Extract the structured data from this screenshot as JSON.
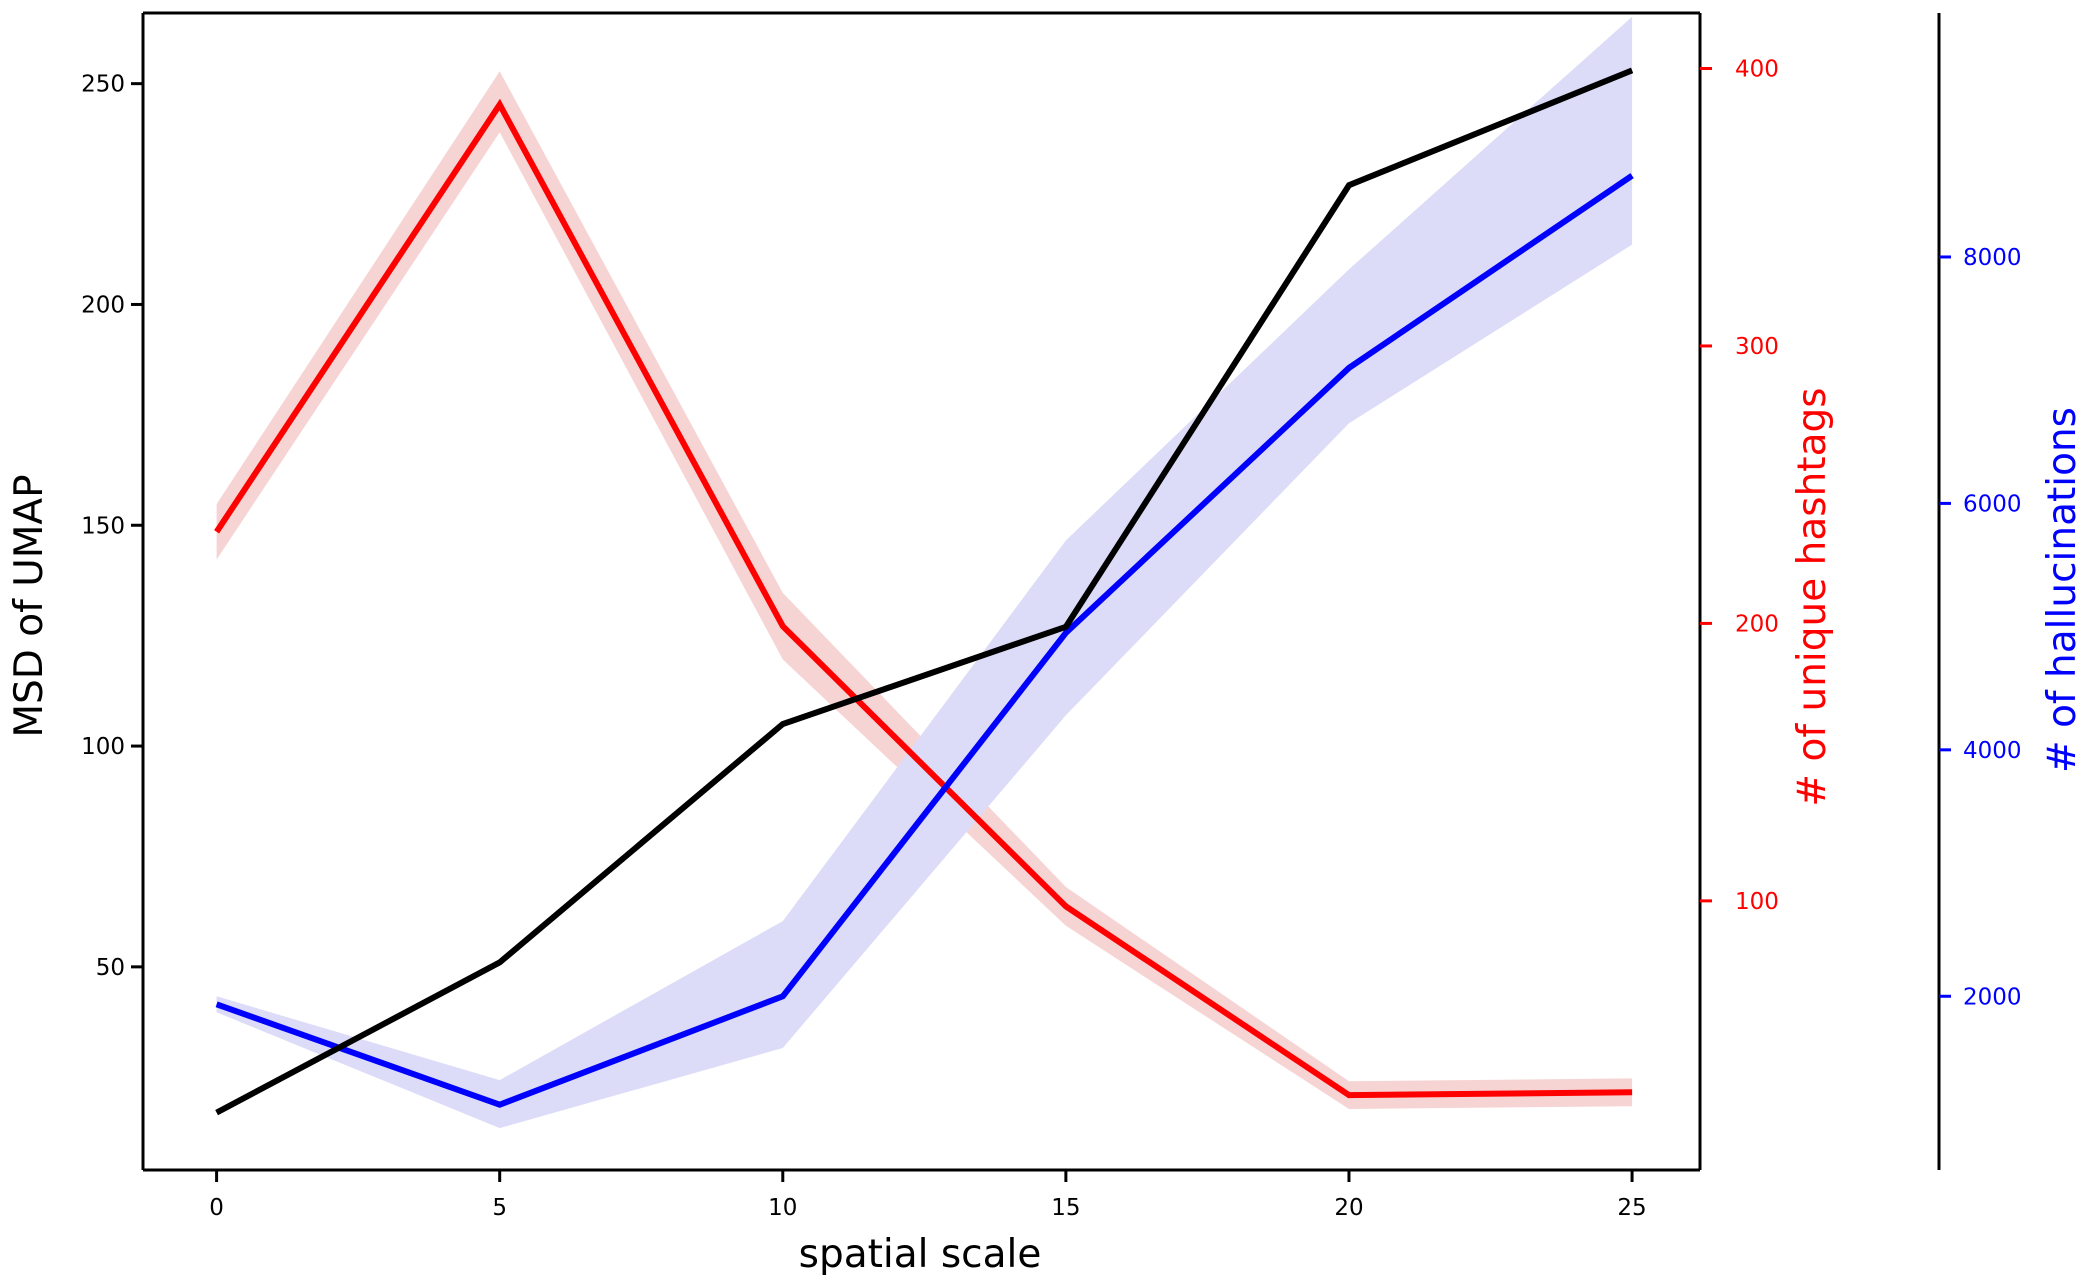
{
  "chart_data": {
    "type": "line",
    "xlabel": "spatial scale",
    "x": [
      0,
      5,
      10,
      15,
      20,
      25
    ],
    "xlim": [
      -1.3,
      26.2
    ],
    "xticks": [
      0,
      5,
      10,
      15,
      20,
      25
    ],
    "axes": {
      "left": {
        "label": "MSD of UMAP",
        "color": "#000000",
        "ylim": [
          4,
          266
        ],
        "ticks": [
          50,
          100,
          150,
          200,
          250
        ]
      },
      "right1": {
        "label": "# of unique hashtags",
        "color": "#ff0000",
        "ylim": [
          3,
          420
        ],
        "ticks": [
          100,
          200,
          300,
          400
        ]
      },
      "right2": {
        "label": "# of hallucinations",
        "color": "#0000ff",
        "ylim": [
          590,
          9980
        ],
        "ticks": [
          2000,
          4000,
          6000,
          8000
        ]
      }
    },
    "series": [
      {
        "axis": "left",
        "color": "#000000",
        "values": [
          17,
          51,
          105,
          127,
          227,
          253
        ]
      },
      {
        "axis": "right1",
        "color": "#ff0000",
        "band_color": "#f7d4d4",
        "values": [
          233,
          387,
          199,
          98,
          30,
          31
        ],
        "lower": [
          223,
          377,
          187,
          91,
          25,
          26
        ],
        "upper": [
          243,
          399,
          211,
          105,
          35,
          36
        ]
      },
      {
        "axis": "right2",
        "color": "#0000ff",
        "band_color": "#dcdcf8",
        "values": [
          1935,
          1120,
          2000,
          4950,
          7100,
          8660
        ],
        "lower": [
          1870,
          930,
          1580,
          4280,
          6650,
          8100
        ],
        "upper": [
          2000,
          1320,
          2610,
          5700,
          7900,
          9950
        ]
      }
    ]
  }
}
